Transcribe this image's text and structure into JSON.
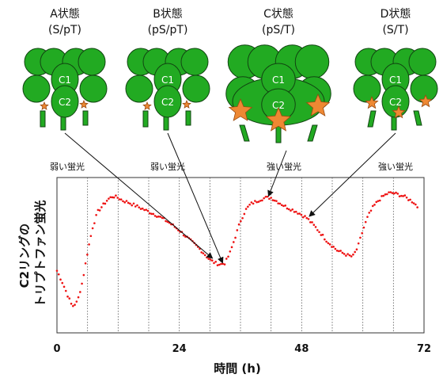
{
  "states": [
    {
      "name": "A状態",
      "code": "(S/pT)",
      "star_size": "small",
      "pose": "closed"
    },
    {
      "name": "B状態",
      "code": "(pS/pT)",
      "star_size": "small",
      "pose": "closed"
    },
    {
      "name": "C状態",
      "code": "(pS/T)",
      "star_size": "large",
      "pose": "open"
    },
    {
      "name": "D状態",
      "code": "(S/T)",
      "star_size": "small",
      "pose": "closed-twisted"
    }
  ],
  "ring_labels": {
    "upper": "C1",
    "lower": "C2"
  },
  "fluorescence_labels": [
    "弱い蛍光",
    "弱い蛍光",
    "強い蛍光",
    "強い蛍光"
  ],
  "colors": {
    "protein": "#22aa22",
    "protein_outline": "#114411",
    "star": "#ee8833",
    "data": "#ee1111"
  },
  "chart_data": {
    "type": "scatter",
    "xlabel": "時間 (h)",
    "ylabel": "C2リングの\nトリプトファン蛍光",
    "xlim": [
      0,
      72
    ],
    "ylim": [
      0,
      1
    ],
    "x_ticks": [
      0,
      24,
      48,
      72
    ],
    "vertical_grid_x": [
      6,
      12,
      18,
      24,
      30,
      36,
      42,
      48,
      54,
      60,
      66
    ],
    "grid_style": "dotted vertical",
    "series": [
      {
        "marker": "red dots",
        "points": [
          [
            0,
            0.4
          ],
          [
            1,
            0.33
          ],
          [
            2,
            0.25
          ],
          [
            3,
            0.17
          ],
          [
            4,
            0.2
          ],
          [
            5,
            0.33
          ],
          [
            6,
            0.52
          ],
          [
            7,
            0.68
          ],
          [
            8,
            0.78
          ],
          [
            9,
            0.82
          ],
          [
            10,
            0.86
          ],
          [
            11,
            0.88
          ],
          [
            12,
            0.87
          ],
          [
            13,
            0.85
          ],
          [
            14,
            0.84
          ],
          [
            16,
            0.81
          ],
          [
            18,
            0.78
          ],
          [
            20,
            0.75
          ],
          [
            22,
            0.71
          ],
          [
            24,
            0.66
          ],
          [
            26,
            0.6
          ],
          [
            28,
            0.54
          ],
          [
            30,
            0.47
          ],
          [
            31,
            0.45
          ],
          [
            32,
            0.44
          ],
          [
            33,
            0.45
          ],
          [
            34,
            0.52
          ],
          [
            35,
            0.62
          ],
          [
            36,
            0.72
          ],
          [
            37,
            0.79
          ],
          [
            38,
            0.83
          ],
          [
            40,
            0.86
          ],
          [
            41,
            0.87
          ],
          [
            42,
            0.87
          ],
          [
            43,
            0.85
          ],
          [
            45,
            0.81
          ],
          [
            47,
            0.78
          ],
          [
            49,
            0.74
          ],
          [
            51,
            0.67
          ],
          [
            53,
            0.59
          ],
          [
            55,
            0.53
          ],
          [
            57,
            0.5
          ],
          [
            58,
            0.49
          ],
          [
            59,
            0.55
          ],
          [
            60,
            0.66
          ],
          [
            61,
            0.75
          ],
          [
            62,
            0.81
          ],
          [
            63,
            0.85
          ],
          [
            64,
            0.88
          ],
          [
            65,
            0.9
          ],
          [
            66,
            0.9
          ],
          [
            67,
            0.89
          ],
          [
            68,
            0.88
          ],
          [
            69,
            0.86
          ],
          [
            70,
            0.84
          ],
          [
            71,
            0.8
          ]
        ]
      }
    ],
    "annotations": [
      {
        "from_state": "A状態",
        "to_x": 30.5,
        "to_y": 0.47
      },
      {
        "from_state": "B状態",
        "to_x": 32.5,
        "to_y": 0.44
      },
      {
        "from_state": "C状態",
        "to_x": 41.5,
        "to_y": 0.87
      },
      {
        "from_state": "D状態",
        "to_x": 49.5,
        "to_y": 0.74
      }
    ]
  }
}
